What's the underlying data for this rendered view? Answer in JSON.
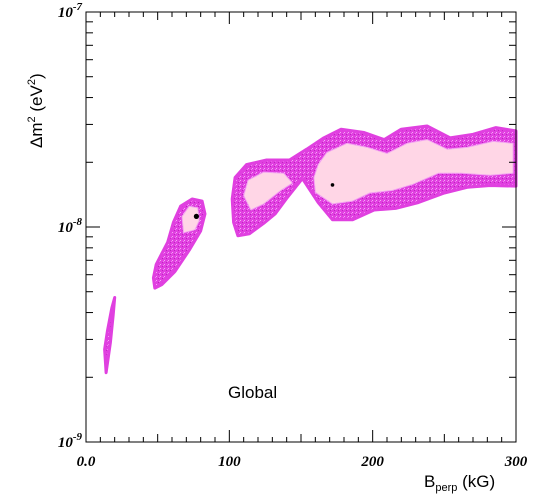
{
  "chart_data": {
    "type": "contour-region",
    "title": "",
    "annotation": "Global",
    "xlabel": {
      "main": "B",
      "sub": "perp",
      "unit": " (kG)"
    },
    "ylabel": {
      "main": "Δm",
      "sup": "2",
      "unit": " (eV",
      "unit_sup": "2",
      "unit_close": ")"
    },
    "xlim": [
      0,
      300
    ],
    "ylim": [
      1e-09,
      1e-07
    ],
    "yscale": "log",
    "grid": false,
    "xticks": [
      {
        "value": 0,
        "label": "0.0"
      },
      {
        "value": 100,
        "label": "100"
      },
      {
        "value": 200,
        "label": "200"
      },
      {
        "value": 300,
        "label": "300"
      }
    ],
    "yticks": [
      {
        "value": 1e-09,
        "label": "10",
        "exp": "-9"
      },
      {
        "value": 1e-08,
        "label": "10",
        "exp": "-8"
      },
      {
        "value": 1e-07,
        "label": "10",
        "exp": "-7"
      }
    ],
    "colors": {
      "outer_region": "#e040e0",
      "inner_region": "#ffd6e6",
      "axes": "#000000"
    },
    "regions": [
      {
        "name": "",
        "outer": [
          [
            14,
            2.1e-09
          ],
          [
            17,
            2.9e-09
          ],
          [
            19,
            3.9e-09
          ],
          [
            20,
            4.7e-09
          ],
          [
            18,
            4.2e-09
          ],
          [
            15,
            3.3e-09
          ],
          [
            13,
            2.7e-09
          ]
        ],
        "inner": []
      },
      {
        "name": "",
        "outer": [
          [
            48,
            5.2e-09
          ],
          [
            53,
            5.4e-09
          ],
          [
            62,
            6.2e-09
          ],
          [
            72,
            7.8e-09
          ],
          [
            80,
            9.6e-09
          ],
          [
            83,
            1.15e-08
          ],
          [
            81,
            1.32e-08
          ],
          [
            74,
            1.35e-08
          ],
          [
            66,
            1.25e-08
          ],
          [
            61,
            1.05e-08
          ],
          [
            57,
            8.5e-09
          ],
          [
            49,
            6.7e-09
          ],
          [
            47,
            5.8e-09
          ]
        ],
        "inner": [
          [
            68,
            9.4e-09
          ],
          [
            76,
            9.7e-09
          ],
          [
            79,
            1.07e-08
          ],
          [
            78,
            1.23e-08
          ],
          [
            72,
            1.25e-08
          ],
          [
            67,
            1.12e-08
          ]
        ]
      },
      {
        "name": "",
        "outer": [
          [
            106,
            9.1e-09
          ],
          [
            114,
            9.3e-09
          ],
          [
            124,
            1.04e-08
          ],
          [
            132,
            1.15e-08
          ],
          [
            140,
            1.36e-08
          ],
          [
            151,
            1.68e-08
          ],
          [
            162,
            1.3e-08
          ],
          [
            172,
            1.08e-08
          ],
          [
            186,
            1.08e-08
          ],
          [
            201,
            1.2e-08
          ],
          [
            216,
            1.22e-08
          ],
          [
            232,
            1.3e-08
          ],
          [
            250,
            1.44e-08
          ],
          [
            266,
            1.53e-08
          ],
          [
            282,
            1.56e-08
          ],
          [
            300,
            1.55e-08
          ],
          [
            300,
            2.8e-08
          ],
          [
            286,
            2.9e-08
          ],
          [
            270,
            2.7e-08
          ],
          [
            254,
            2.6e-08
          ],
          [
            238,
            2.95e-08
          ],
          [
            220,
            2.85e-08
          ],
          [
            208,
            2.55e-08
          ],
          [
            194,
            2.75e-08
          ],
          [
            178,
            2.85e-08
          ],
          [
            166,
            2.6e-08
          ],
          [
            154,
            2.3e-08
          ],
          [
            142,
            2.05e-08
          ],
          [
            126,
            2.05e-08
          ],
          [
            112,
            1.95e-08
          ],
          [
            104,
            1.7e-08
          ],
          [
            102,
            1.35e-08
          ],
          [
            103,
            1.05e-08
          ]
        ],
        "inner": [
          [
            115,
            1.2e-08
          ],
          [
            124,
            1.28e-08
          ],
          [
            136,
            1.48e-08
          ],
          [
            144,
            1.6e-08
          ],
          [
            138,
            1.78e-08
          ],
          [
            124,
            1.8e-08
          ],
          [
            113,
            1.65e-08
          ],
          [
            110,
            1.4e-08
          ]
        ],
        "inner2": [
          [
            160,
            1.45e-08
          ],
          [
            172,
            1.28e-08
          ],
          [
            186,
            1.32e-08
          ],
          [
            198,
            1.44e-08
          ],
          [
            214,
            1.48e-08
          ],
          [
            228,
            1.58e-08
          ],
          [
            246,
            1.78e-08
          ],
          [
            262,
            1.78e-08
          ],
          [
            282,
            1.74e-08
          ],
          [
            298,
            1.78e-08
          ],
          [
            298,
            2.45e-08
          ],
          [
            284,
            2.5e-08
          ],
          [
            266,
            2.35e-08
          ],
          [
            252,
            2.3e-08
          ],
          [
            238,
            2.55e-08
          ],
          [
            224,
            2.45e-08
          ],
          [
            210,
            2.2e-08
          ],
          [
            196,
            2.35e-08
          ],
          [
            182,
            2.45e-08
          ],
          [
            168,
            2.22e-08
          ],
          [
            162,
            1.95e-08
          ],
          [
            159,
            1.7e-08
          ]
        ]
      }
    ],
    "best_fit_points": [
      {
        "x": 77,
        "y": 1.12e-08
      },
      {
        "x": 172,
        "y": 1.57e-08
      }
    ]
  }
}
